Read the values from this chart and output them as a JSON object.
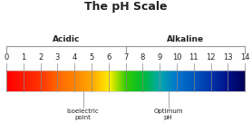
{
  "title": "The pH Scale",
  "title_fontsize": 9,
  "acidic_label": "Acidic",
  "alkaline_label": "Alkaline",
  "isoelectric_label": "Isoelectric\npoint",
  "optimum_label": "Optimum\npH",
  "isoelectric_ph": 4.5,
  "optimum_ph": 9.5,
  "ph_min": 0,
  "ph_max": 14,
  "background_color": "#ffffff",
  "text_color": "#222222",
  "bracket_color": "#999999",
  "label_fontsize": 6.5,
  "tick_fontsize": 6,
  "annot_fontsize": 5,
  "ph_colors": [
    [
      0.0,
      "#ff0000"
    ],
    [
      0.07,
      "#ff1a00"
    ],
    [
      0.14,
      "#ff3300"
    ],
    [
      0.21,
      "#ff6600"
    ],
    [
      0.29,
      "#ff8800"
    ],
    [
      0.36,
      "#ffaa00"
    ],
    [
      0.43,
      "#ffee00"
    ],
    [
      0.5,
      "#33cc00"
    ],
    [
      0.57,
      "#00bb33"
    ],
    [
      0.64,
      "#00aaaa"
    ],
    [
      0.71,
      "#0077cc"
    ],
    [
      0.79,
      "#0055bb"
    ],
    [
      0.86,
      "#0033aa"
    ],
    [
      0.93,
      "#001188"
    ],
    [
      1.0,
      "#000055"
    ]
  ]
}
